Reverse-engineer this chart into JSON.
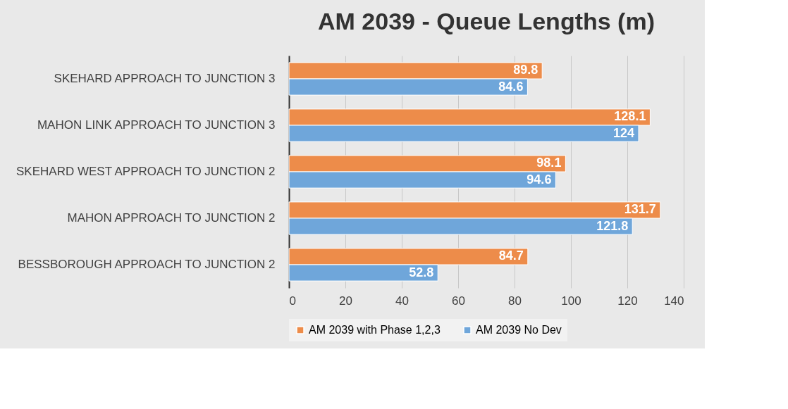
{
  "chart_data": {
    "type": "bar",
    "orientation": "horizontal",
    "title": "AM 2039 - Queue Lengths (m)",
    "categories": [
      "SKEHARD APPROACH TO JUNCTION 3",
      "MAHON LINK APPROACH TO JUNCTION 3",
      "SKEHARD WEST APPROACH TO JUNCTION 2",
      "MAHON APPROACH TO JUNCTION 2",
      "BESSBOROUGH APPROACH TO JUNCTION 2"
    ],
    "series": [
      {
        "name": "AM 2039 with Phase 1,2,3",
        "color": "#ed8c4a",
        "values": [
          89.8,
          128.1,
          98.1,
          131.7,
          84.7
        ]
      },
      {
        "name": "AM 2039 No Dev",
        "color": "#6fa6da",
        "values": [
          84.6,
          124,
          94.6,
          121.8,
          52.8
        ]
      }
    ],
    "xlim": [
      0,
      140
    ],
    "xticks": [
      0,
      20,
      40,
      60,
      80,
      100,
      120,
      140
    ],
    "grid": "x",
    "legend": "bottom",
    "data_labels": true
  }
}
